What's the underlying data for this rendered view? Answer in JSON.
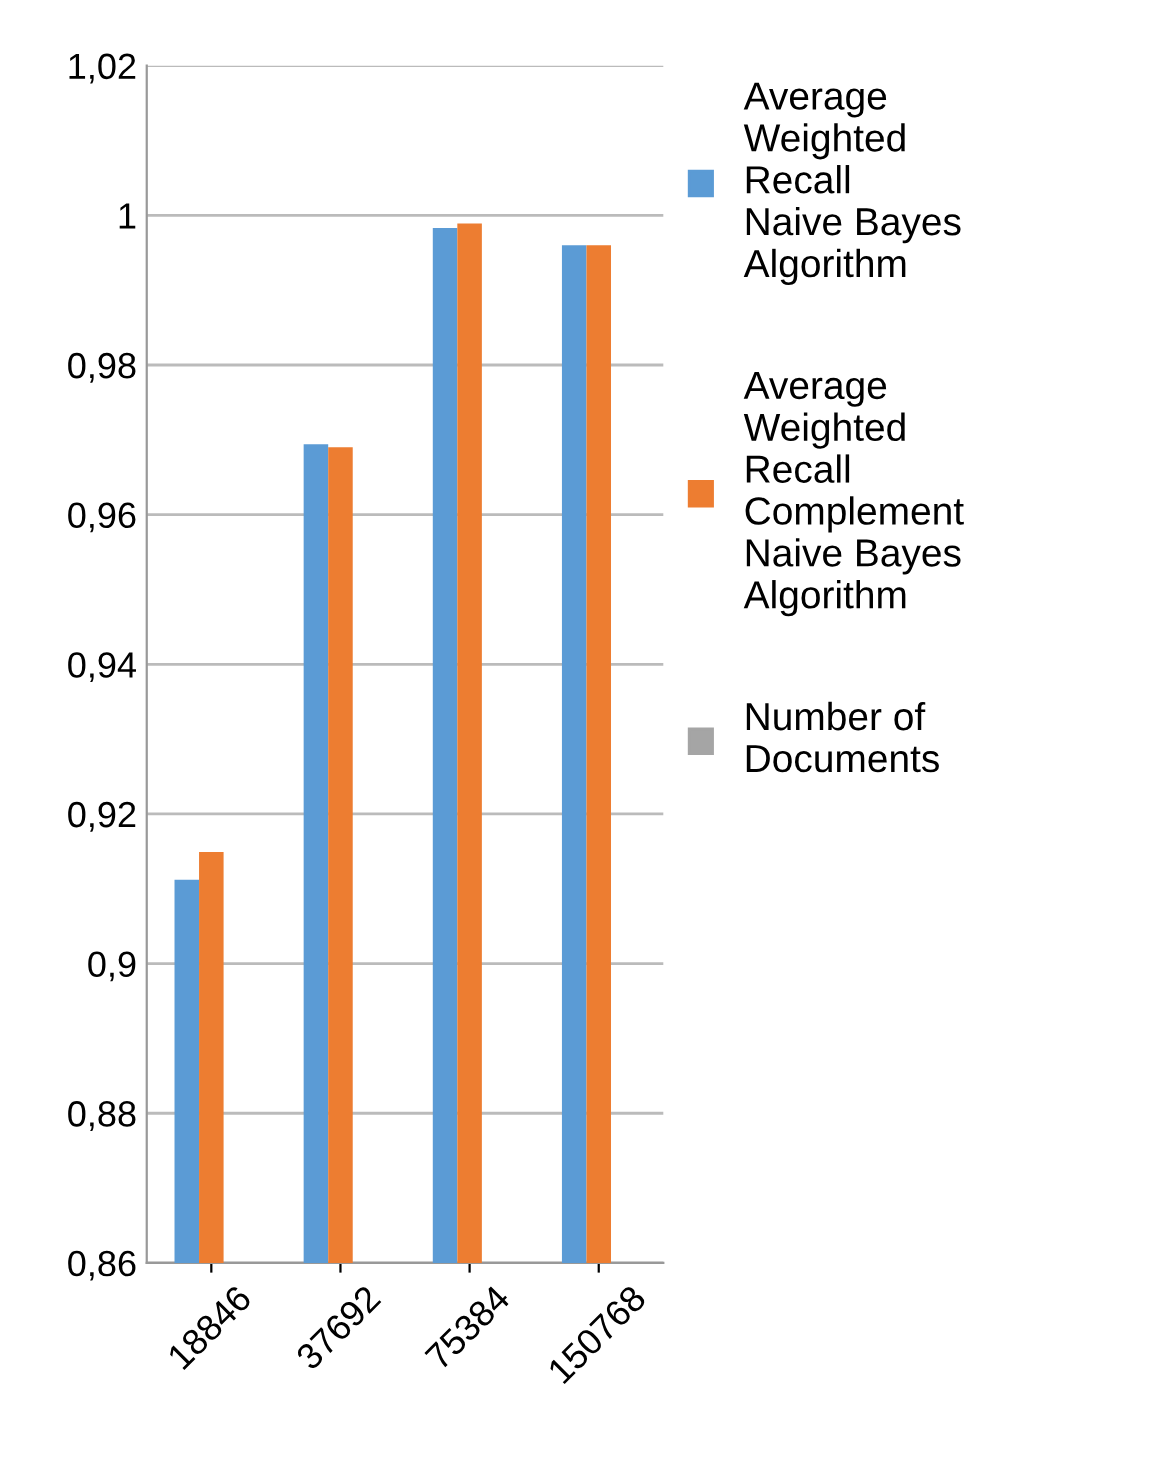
{
  "chart_data": {
    "type": "bar",
    "categories": [
      "18846",
      "37692",
      "75384",
      "150768"
    ],
    "series": [
      {
        "name": "Average Weighted Recall  Naive Bayes Algorithm",
        "color": "#5b9bd5",
        "values": [
          0.9112,
          0.9694,
          0.9983,
          0.996
        ]
      },
      {
        "name": "Average Weighted Recall Complement Naive Bayes Algorithm",
        "color": "#ed7d31",
        "values": [
          0.9149,
          0.969,
          0.9989,
          0.996
        ]
      },
      {
        "name": "Number of Documents",
        "color": "#a5a5a5",
        "values": [
          null,
          null,
          null,
          null
        ]
      }
    ],
    "ylim": [
      0.86,
      1.02
    ],
    "yticks": [
      {
        "value": 0.86,
        "label": "0,86"
      },
      {
        "value": 0.88,
        "label": "0,88"
      },
      {
        "value": 0.9,
        "label": "0,9"
      },
      {
        "value": 0.92,
        "label": "0,92"
      },
      {
        "value": 0.94,
        "label": "0,94"
      },
      {
        "value": 0.96,
        "label": "0,96"
      },
      {
        "value": 0.98,
        "label": "0,98"
      },
      {
        "value": 1.0,
        "label": "1"
      },
      {
        "value": 1.02,
        "label": "1,02"
      }
    ],
    "grid": "y",
    "legend": "right"
  }
}
